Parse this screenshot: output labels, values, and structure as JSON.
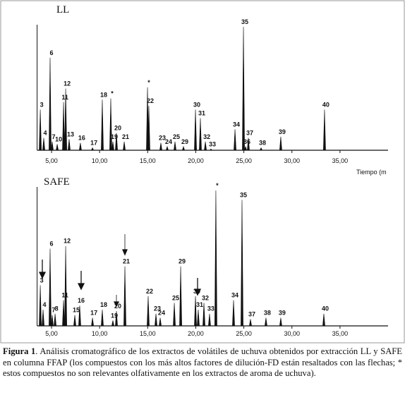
{
  "chart_data": [
    {
      "type": "line",
      "title": "LL",
      "x_label": "Tiempo (m",
      "xlim": [
        3.5,
        40
      ],
      "xticks": [
        {
          "value": 5,
          "label": "5,00"
        },
        {
          "value": 10,
          "label": "10,00"
        },
        {
          "value": 15,
          "label": "15,00"
        },
        {
          "value": 20,
          "label": "20,00"
        },
        {
          "value": 25,
          "label": "25,00"
        },
        {
          "value": 30,
          "label": "30,00"
        },
        {
          "value": 35,
          "label": "35,00"
        }
      ],
      "peak_labels": [
        "3",
        "4",
        "6",
        "7",
        "10",
        "11",
        "12",
        "13",
        "16",
        "17",
        "18",
        "*",
        "19",
        "20",
        "21",
        "*",
        "22",
        "23",
        "24",
        "25",
        "29",
        "30",
        "31",
        "32",
        "33",
        "34",
        "35",
        "36",
        "37",
        "38",
        "39",
        "40"
      ],
      "x": [
        3.83,
        4.19,
        4.85,
        5.07,
        5.59,
        6.25,
        6.47,
        6.83,
        8.0,
        9.26,
        10.28,
        11.16,
        11.38,
        11.75,
        12.56,
        14.98,
        15.12,
        16.37,
        17.03,
        17.84,
        18.72,
        19.97,
        20.48,
        21.0,
        21.58,
        24.08,
        24.96,
        25.18,
        25.47,
        26.79,
        28.84,
        33.39
      ],
      "values": [
        33,
        10,
        75,
        7,
        5,
        39,
        50,
        9,
        6,
        2,
        41,
        42,
        7,
        14,
        7,
        51,
        36,
        6,
        3,
        7,
        3,
        33,
        26,
        7,
        1,
        17,
        100,
        3,
        10,
        2,
        11,
        33
      ]
    },
    {
      "type": "line",
      "title": "SAFE",
      "xlim": [
        3.5,
        40
      ],
      "xticks": [
        {
          "value": 5,
          "label": "5,00"
        },
        {
          "value": 10,
          "label": "10,00"
        },
        {
          "value": 15,
          "label": "15,00"
        },
        {
          "value": 20,
          "label": "20,00"
        },
        {
          "value": 25,
          "label": "25,00"
        },
        {
          "value": 30,
          "label": "30,00"
        },
        {
          "value": 35,
          "label": "35,00"
        }
      ],
      "peak_labels": [
        "3",
        "4",
        "7",
        "6",
        "8",
        "11",
        "12",
        "15",
        "16",
        "17",
        "18",
        "19",
        "20",
        "21",
        "22",
        "23",
        "24",
        "25",
        "29",
        "30",
        "31",
        "32",
        "33",
        "*",
        "34",
        "35",
        "37",
        "38",
        "39",
        "40"
      ],
      "x": [
        3.83,
        4.12,
        5.07,
        4.85,
        5.37,
        6.25,
        6.47,
        7.42,
        7.93,
        9.26,
        10.28,
        11.38,
        11.75,
        12.63,
        15.05,
        15.86,
        16.3,
        17.77,
        18.43,
        19.97,
        20.26,
        20.85,
        21.43,
        22.09,
        23.93,
        24.81,
        25.69,
        27.3,
        28.84,
        33.32
      ],
      "values": [
        30,
        12,
        8,
        57,
        9,
        19,
        59,
        8,
        15,
        6,
        12,
        4,
        11,
        44,
        22,
        9,
        6,
        17,
        44,
        22,
        12,
        17,
        9,
        100,
        19,
        93,
        5,
        6,
        6,
        9
      ]
    }
  ],
  "caption": {
    "label": "Figura 1",
    "text": ". Análisis cromatográfico de los extractos de volátiles de uchuva obtenidos por extracción LL y SAFE en columna FFAP (los compuestos con los más altos factores de dilución-FD están resaltados con las flechas; * estos compuestos no son relevantes olfativamente en los extractos de aroma de uchuva)."
  }
}
